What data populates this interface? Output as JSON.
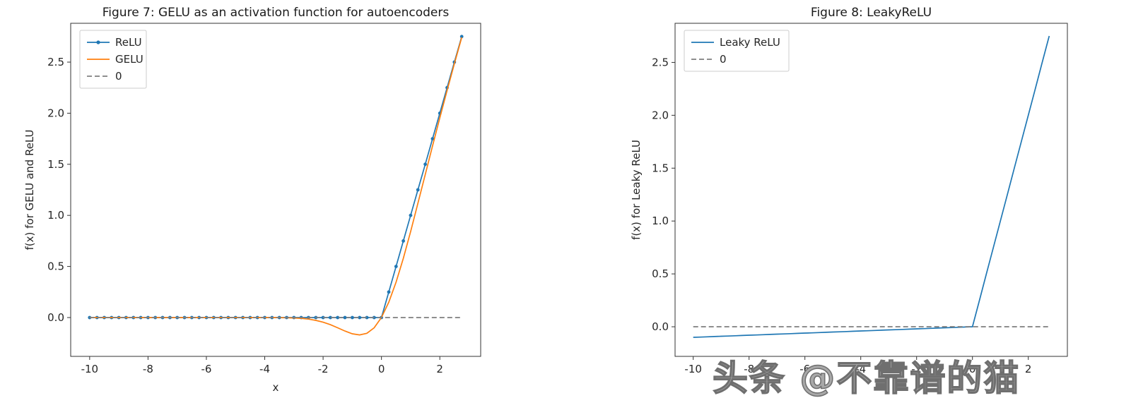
{
  "watermark": {
    "text": "头条 @不靠谱的猫",
    "color": "#a8a8a8"
  },
  "chart_data": [
    {
      "type": "line",
      "title": "Figure 7: GELU as an activation function for autoencoders",
      "xlabel": "x",
      "ylabel": "f(x) for GELU and ReLU",
      "xlim": [
        -10.65,
        3.4
      ],
      "ylim": [
        -0.38,
        2.88
      ],
      "xticks": [
        -10,
        -8,
        -6,
        -4,
        -2,
        0,
        2
      ],
      "xtick_labels": [
        "-10",
        "-8",
        "-6",
        "-4",
        "-2",
        "0",
        "2"
      ],
      "yticks": [
        0.0,
        0.5,
        1.0,
        1.5,
        2.0,
        2.5
      ],
      "ytick_labels": [
        "0.0",
        "0.5",
        "1.0",
        "1.5",
        "2.0",
        "2.5"
      ],
      "legend_position": "upper-left",
      "grid": false,
      "x": [
        -10,
        -9.75,
        -9.5,
        -9.25,
        -9,
        -8.75,
        -8.5,
        -8.25,
        -8,
        -7.75,
        -7.5,
        -7.25,
        -7,
        -6.75,
        -6.5,
        -6.25,
        -6,
        -5.75,
        -5.5,
        -5.25,
        -5,
        -4.75,
        -4.5,
        -4.25,
        -4,
        -3.75,
        -3.5,
        -3.25,
        -3,
        -2.75,
        -2.5,
        -2.25,
        -2,
        -1.75,
        -1.5,
        -1.25,
        -1,
        -0.75,
        -0.5,
        -0.25,
        0,
        0.25,
        0.5,
        0.75,
        1,
        1.25,
        1.5,
        1.75,
        2,
        2.25,
        2.5,
        2.75
      ],
      "series": [
        {
          "name": "ReLU",
          "color": "#1f77b4",
          "marker": "dot",
          "dash": false,
          "y": [
            0,
            0,
            0,
            0,
            0,
            0,
            0,
            0,
            0,
            0,
            0,
            0,
            0,
            0,
            0,
            0,
            0,
            0,
            0,
            0,
            0,
            0,
            0,
            0,
            0,
            0,
            0,
            0,
            0,
            0,
            0,
            0,
            0,
            0,
            0,
            0,
            0,
            0,
            0,
            0,
            0,
            0.25,
            0.5,
            0.75,
            1.0,
            1.25,
            1.5,
            1.75,
            2.0,
            2.25,
            2.5,
            2.75
          ]
        },
        {
          "name": "GELU",
          "color": "#ff7f0e",
          "marker": null,
          "dash": false,
          "y": [
            0,
            0,
            0,
            0,
            0,
            0,
            0,
            0,
            0,
            0,
            0,
            0,
            0,
            0,
            0,
            0,
            0,
            0,
            0,
            0,
            0,
            0,
            0,
            0,
            -0.0001,
            -0.0003,
            -0.0008,
            -0.0019,
            -0.004,
            -0.0082,
            -0.0155,
            -0.0275,
            -0.0455,
            -0.0701,
            -0.1002,
            -0.1321,
            -0.1587,
            -0.17,
            -0.1543,
            -0.1003,
            0,
            0.1497,
            0.3457,
            0.58,
            0.8413,
            1.1179,
            1.3998,
            1.6799,
            1.9545,
            2.2225,
            2.4845,
            2.7418
          ]
        },
        {
          "name": "0",
          "color": "#7f7f7f",
          "marker": null,
          "dash": true,
          "x": [
            -10,
            2.75
          ],
          "y": [
            0,
            0
          ]
        }
      ]
    },
    {
      "type": "line",
      "title": "Figure 8: LeakyReLU",
      "xlabel": "",
      "ylabel": "f(x) for Leaky ReLU",
      "xlim": [
        -10.65,
        3.4
      ],
      "ylim": [
        -0.28,
        2.87
      ],
      "xticks": [
        -10,
        -8,
        -6,
        -4,
        -2,
        0,
        2
      ],
      "xtick_labels": [
        "-10",
        "-8",
        "-6",
        "-4",
        "-2",
        "0",
        "2"
      ],
      "yticks": [
        0.0,
        0.5,
        1.0,
        1.5,
        2.0,
        2.5
      ],
      "ytick_labels": [
        "0.0",
        "0.5",
        "1.0",
        "1.5",
        "2.0",
        "2.5"
      ],
      "legend_position": "upper-left",
      "grid": false,
      "x": [
        -10,
        -9.75,
        -9.5,
        -9.25,
        -9,
        -8.75,
        -8.5,
        -8.25,
        -8,
        -7.75,
        -7.5,
        -7.25,
        -7,
        -6.75,
        -6.5,
        -6.25,
        -6,
        -5.75,
        -5.5,
        -5.25,
        -5,
        -4.75,
        -4.5,
        -4.25,
        -4,
        -3.75,
        -3.5,
        -3.25,
        -3,
        -2.75,
        -2.5,
        -2.25,
        -2,
        -1.75,
        -1.5,
        -1.25,
        -1,
        -0.75,
        -0.5,
        -0.25,
        0,
        0.25,
        0.5,
        0.75,
        1,
        1.25,
        1.5,
        1.75,
        2,
        2.25,
        2.5,
        2.75
      ],
      "series": [
        {
          "name": "Leaky ReLU",
          "color": "#1f77b4",
          "marker": null,
          "dash": false,
          "y": [
            -0.1,
            -0.0975,
            -0.095,
            -0.0925,
            -0.09,
            -0.0875,
            -0.085,
            -0.0825,
            -0.08,
            -0.0775,
            -0.075,
            -0.0725,
            -0.07,
            -0.0675,
            -0.065,
            -0.0625,
            -0.06,
            -0.0575,
            -0.055,
            -0.0525,
            -0.05,
            -0.0475,
            -0.045,
            -0.0425,
            -0.04,
            -0.0375,
            -0.035,
            -0.0325,
            -0.03,
            -0.0275,
            -0.025,
            -0.0225,
            -0.02,
            -0.0175,
            -0.015,
            -0.0125,
            -0.01,
            -0.0075,
            -0.005,
            -0.0025,
            0,
            0.25,
            0.5,
            0.75,
            1.0,
            1.25,
            1.5,
            1.75,
            2.0,
            2.25,
            2.5,
            2.75
          ]
        },
        {
          "name": "0",
          "color": "#7f7f7f",
          "marker": null,
          "dash": true,
          "x": [
            -10,
            2.75
          ],
          "y": [
            0,
            0
          ]
        }
      ]
    }
  ]
}
